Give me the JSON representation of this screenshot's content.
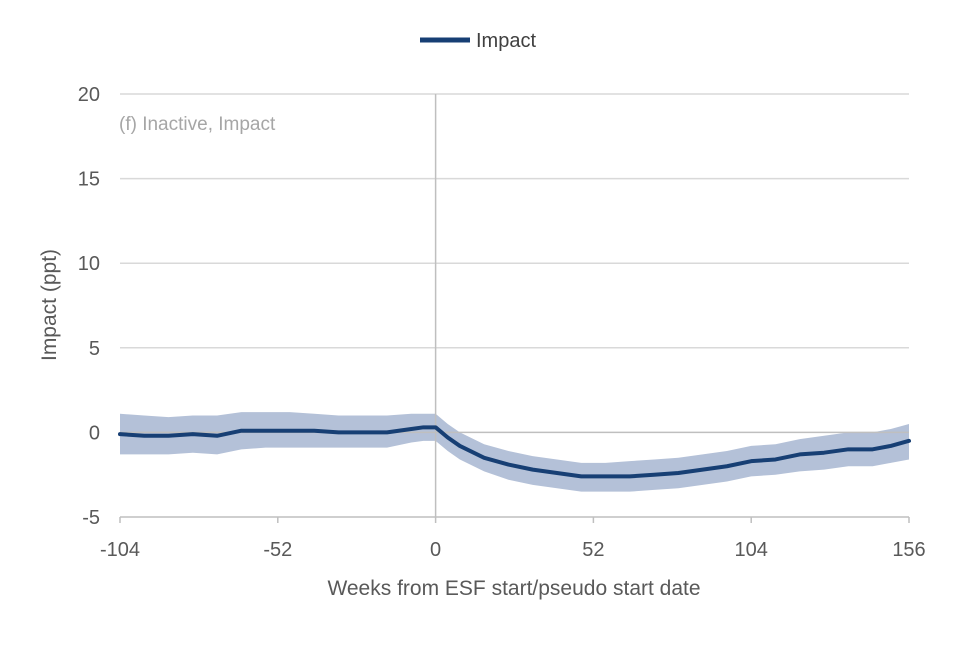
{
  "chart_data": {
    "type": "line",
    "title": "",
    "panel_label": "(f) Inactive, Impact",
    "xlabel": "Weeks from ESF start/pseudo start date",
    "ylabel": "Impact (ppt)",
    "xlim": [
      -104,
      156
    ],
    "ylim": [
      -5,
      20
    ],
    "xticks": [
      -104,
      -52,
      0,
      52,
      104,
      156
    ],
    "yticks": [
      -5,
      0,
      5,
      10,
      15,
      20
    ],
    "grid": "horizontal",
    "legend": {
      "placement": "top-center",
      "entries": [
        "Impact"
      ]
    },
    "reference_line_x": 0,
    "colors": {
      "line": "#173f74",
      "band": "#b4c1d8",
      "grid": "#d9d9d9",
      "axis": "#bfbfbf",
      "text": "#595959",
      "panel_label": "#a6a6a6"
    },
    "series": [
      {
        "name": "Impact",
        "x": [
          -104,
          -96,
          -88,
          -80,
          -72,
          -64,
          -56,
          -48,
          -40,
          -32,
          -24,
          -16,
          -8,
          -4,
          0,
          4,
          8,
          16,
          24,
          32,
          40,
          48,
          52,
          56,
          64,
          72,
          80,
          88,
          96,
          104,
          112,
          120,
          128,
          136,
          144,
          150,
          156
        ],
        "y": [
          -0.1,
          -0.2,
          -0.2,
          -0.1,
          -0.2,
          0.1,
          0.1,
          0.1,
          0.1,
          0.0,
          0.0,
          0.0,
          0.2,
          0.3,
          0.3,
          -0.3,
          -0.8,
          -1.5,
          -1.9,
          -2.2,
          -2.4,
          -2.6,
          -2.6,
          -2.6,
          -2.6,
          -2.5,
          -2.4,
          -2.2,
          -2.0,
          -1.7,
          -1.6,
          -1.3,
          -1.2,
          -1.0,
          -1.0,
          -0.8,
          -0.5
        ],
        "lower": [
          -1.3,
          -1.3,
          -1.3,
          -1.2,
          -1.3,
          -1.0,
          -0.9,
          -0.9,
          -0.9,
          -0.9,
          -0.9,
          -0.9,
          -0.6,
          -0.5,
          -0.5,
          -1.1,
          -1.6,
          -2.3,
          -2.8,
          -3.1,
          -3.3,
          -3.5,
          -3.5,
          -3.5,
          -3.5,
          -3.4,
          -3.3,
          -3.1,
          -2.9,
          -2.6,
          -2.5,
          -2.3,
          -2.2,
          -2.0,
          -2.0,
          -1.8,
          -1.6
        ],
        "upper": [
          1.1,
          1.0,
          0.9,
          1.0,
          1.0,
          1.2,
          1.2,
          1.2,
          1.1,
          1.0,
          1.0,
          1.0,
          1.1,
          1.1,
          1.1,
          0.5,
          0.0,
          -0.7,
          -1.1,
          -1.4,
          -1.6,
          -1.8,
          -1.8,
          -1.8,
          -1.7,
          -1.6,
          -1.5,
          -1.3,
          -1.1,
          -0.8,
          -0.7,
          -0.4,
          -0.2,
          0.0,
          0.0,
          0.2,
          0.5
        ]
      }
    ]
  }
}
